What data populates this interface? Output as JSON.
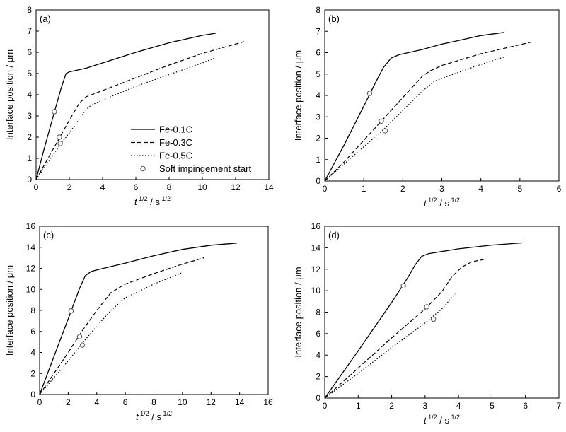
{
  "chart_data": [
    {
      "type": "line",
      "panel_label": "(a)",
      "xlabel": {
        "base": "t",
        "exp1": "1/2",
        "sep": " / s",
        "exp2": "1/2"
      },
      "ylabel": "Interface position / μm",
      "xlim": [
        0,
        14
      ],
      "ylim": [
        0,
        8
      ],
      "xticks": [
        0,
        2,
        4,
        6,
        8,
        10,
        12,
        14
      ],
      "yticks": [
        0,
        1,
        2,
        3,
        4,
        5,
        6,
        7,
        8
      ],
      "grid": false,
      "legend": {
        "placement": "center-left",
        "entries": [
          {
            "label": "Fe-0.1C",
            "style": "solid"
          },
          {
            "label": "Fe-0.3C",
            "style": "dashed"
          },
          {
            "label": "Fe-0.5C",
            "style": "dotted"
          },
          {
            "label": "Soft impingement start",
            "style": "marker-open-circle"
          }
        ]
      },
      "series": [
        {
          "name": "Fe-0.1C",
          "style": "solid",
          "x": [
            0,
            0.5,
            1.0,
            1.5,
            1.8,
            2.0,
            3.0,
            4.0,
            6.0,
            8.0,
            10.0,
            10.8
          ],
          "y": [
            0,
            1.5,
            2.9,
            4.3,
            5.0,
            5.08,
            5.25,
            5.5,
            6.0,
            6.45,
            6.8,
            6.9
          ]
        },
        {
          "name": "Fe-0.3C",
          "style": "dashed",
          "x": [
            0,
            1.0,
            1.5,
            2.0,
            2.6,
            3.0,
            4.0,
            6.0,
            8.0,
            10.0,
            12.5
          ],
          "y": [
            0,
            1.4,
            2.1,
            2.8,
            3.6,
            3.9,
            4.2,
            4.8,
            5.4,
            5.95,
            6.5
          ]
        },
        {
          "name": "Fe-0.5C",
          "style": "dotted",
          "x": [
            0,
            1.5,
            2.0,
            3.0,
            3.3,
            4.0,
            6.0,
            8.0,
            10.0,
            10.8
          ],
          "y": [
            0,
            1.7,
            2.2,
            3.3,
            3.5,
            3.75,
            4.4,
            4.95,
            5.5,
            5.75
          ]
        }
      ],
      "soft_impingement_start": [
        {
          "series": "Fe-0.1C",
          "x": 1.1,
          "y": 3.2
        },
        {
          "series": "Fe-0.3C",
          "x": 1.4,
          "y": 2.0
        },
        {
          "series": "Fe-0.5C",
          "x": 1.45,
          "y": 1.7
        }
      ]
    },
    {
      "type": "line",
      "panel_label": "(b)",
      "xlabel": {
        "base": "t",
        "exp1": "1/2",
        "sep": " / s",
        "exp2": "1/2"
      },
      "ylabel": "Interface position / μm",
      "xlim": [
        0,
        6
      ],
      "ylim": [
        0,
        8
      ],
      "xticks": [
        0,
        1,
        2,
        3,
        4,
        5,
        6
      ],
      "yticks": [
        0,
        1,
        2,
        3,
        4,
        5,
        6,
        7,
        8
      ],
      "grid": false,
      "series": [
        {
          "name": "Fe-0.1C",
          "style": "solid",
          "x": [
            0,
            0.5,
            1.0,
            1.3,
            1.5,
            1.7,
            1.9,
            2.5,
            3.0,
            3.5,
            4.0,
            4.6
          ],
          "y": [
            0,
            1.7,
            3.5,
            4.6,
            5.3,
            5.75,
            5.9,
            6.15,
            6.4,
            6.6,
            6.8,
            6.95
          ]
        },
        {
          "name": "Fe-0.3C",
          "style": "dashed",
          "x": [
            0,
            0.5,
            1.0,
            1.5,
            2.0,
            2.5,
            2.7,
            3.0,
            4.0,
            5.3
          ],
          "y": [
            0,
            0.9,
            1.9,
            2.9,
            3.9,
            4.9,
            5.15,
            5.4,
            5.95,
            6.5
          ]
        },
        {
          "name": "Fe-0.5C",
          "style": "dotted",
          "x": [
            0,
            0.5,
            1.0,
            1.5,
            2.0,
            2.5,
            2.8,
            3.0,
            4.0,
            4.6
          ],
          "y": [
            0,
            0.8,
            1.6,
            2.4,
            3.3,
            4.2,
            4.65,
            4.8,
            5.45,
            5.8
          ]
        }
      ],
      "soft_impingement_start": [
        {
          "series": "Fe-0.1C",
          "x": 1.15,
          "y": 4.1
        },
        {
          "series": "Fe-0.3C",
          "x": 1.45,
          "y": 2.8
        },
        {
          "series": "Fe-0.5C",
          "x": 1.55,
          "y": 2.35
        }
      ]
    },
    {
      "type": "line",
      "panel_label": "(c)",
      "xlabel": {
        "base": "t",
        "exp1": "1/2",
        "sep": " / s",
        "exp2": "1/2"
      },
      "ylabel": "Interface position / μm",
      "xlim": [
        0,
        16
      ],
      "ylim": [
        0,
        16
      ],
      "xticks": [
        0,
        2,
        4,
        6,
        8,
        10,
        12,
        14,
        16
      ],
      "yticks": [
        0,
        2,
        4,
        6,
        8,
        10,
        12,
        14,
        16
      ],
      "grid": false,
      "series": [
        {
          "name": "Fe-0.1C",
          "style": "solid",
          "x": [
            0,
            1.0,
            2.0,
            2.8,
            3.2,
            3.6,
            4.0,
            6.0,
            8.0,
            10.0,
            12.0,
            13.8
          ],
          "y": [
            0,
            3.6,
            7.2,
            10.1,
            11.3,
            11.7,
            11.85,
            12.5,
            13.2,
            13.8,
            14.2,
            14.4
          ]
        },
        {
          "name": "Fe-0.3C",
          "style": "dashed",
          "x": [
            0,
            1.0,
            2.0,
            3.0,
            4.0,
            5.0,
            5.5,
            6.0,
            8.0,
            10.0,
            11.5
          ],
          "y": [
            0,
            2.0,
            4.0,
            6.1,
            8.0,
            9.7,
            10.1,
            10.5,
            11.5,
            12.4,
            13.0
          ]
        },
        {
          "name": "Fe-0.5C",
          "style": "dotted",
          "x": [
            0,
            1.0,
            2.0,
            3.0,
            4.0,
            5.0,
            6.0,
            6.3,
            8.0,
            10.0
          ],
          "y": [
            0,
            1.6,
            3.2,
            4.9,
            6.5,
            8.0,
            9.2,
            9.4,
            10.5,
            11.6
          ]
        }
      ],
      "soft_impingement_start": [
        {
          "series": "Fe-0.1C",
          "x": 2.2,
          "y": 7.95
        },
        {
          "series": "Fe-0.3C",
          "x": 2.8,
          "y": 5.5
        },
        {
          "series": "Fe-0.5C",
          "x": 3.0,
          "y": 4.7
        }
      ]
    },
    {
      "type": "line",
      "panel_label": "(d)",
      "xlabel": {
        "base": "t",
        "exp1": "1/2",
        "sep": " / s",
        "exp2": "1/2"
      },
      "ylabel": "Interface position / μm",
      "xlim": [
        0,
        7
      ],
      "ylim": [
        0,
        16
      ],
      "xticks": [
        0,
        1,
        2,
        3,
        4,
        5,
        6,
        7
      ],
      "yticks": [
        0,
        2,
        4,
        6,
        8,
        10,
        12,
        14,
        16
      ],
      "grid": false,
      "series": [
        {
          "name": "Fe-0.1C",
          "style": "solid",
          "x": [
            0,
            1.0,
            2.0,
            2.5,
            2.7,
            2.9,
            3.1,
            4.0,
            5.0,
            5.9
          ],
          "y": [
            0,
            4.4,
            8.9,
            11.3,
            12.4,
            13.2,
            13.45,
            13.9,
            14.25,
            14.45
          ]
        },
        {
          "name": "Fe-0.3C",
          "style": "dashed",
          "x": [
            0,
            1.0,
            2.0,
            3.0,
            3.5,
            3.8,
            4.1,
            4.4,
            4.75
          ],
          "y": [
            0,
            2.8,
            5.6,
            8.3,
            9.9,
            11.3,
            12.2,
            12.7,
            12.9
          ]
        },
        {
          "name": "Fe-0.5C",
          "style": "dotted",
          "x": [
            0,
            1.0,
            2.0,
            3.0,
            3.5,
            3.9
          ],
          "y": [
            0,
            2.3,
            4.7,
            7.0,
            8.3,
            9.7
          ]
        }
      ],
      "soft_impingement_start": [
        {
          "series": "Fe-0.1C",
          "x": 2.35,
          "y": 10.45
        },
        {
          "series": "Fe-0.3C",
          "x": 3.05,
          "y": 8.5
        },
        {
          "series": "Fe-0.5C",
          "x": 3.25,
          "y": 7.35
        }
      ]
    }
  ]
}
